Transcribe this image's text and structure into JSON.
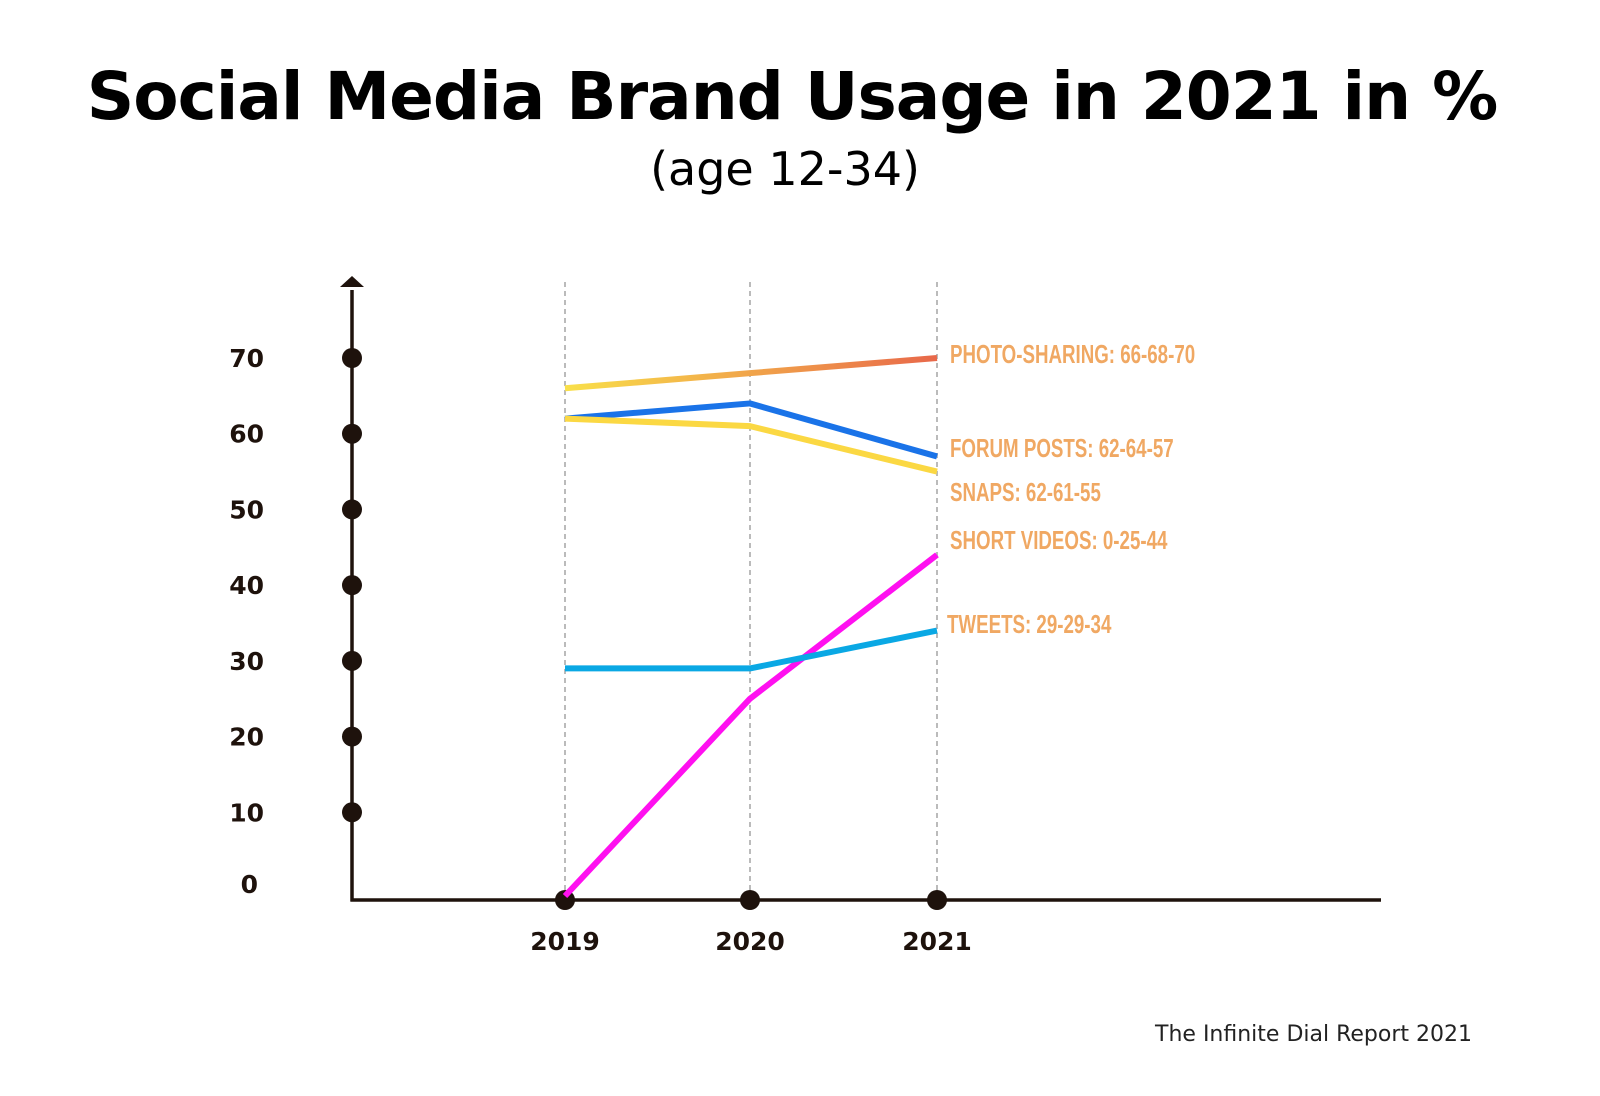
{
  "chart_data": {
    "type": "line",
    "title": "Social Media Brand Usage in 2021 in %",
    "subtitle": "(age 12-34)",
    "source": "The Infinite Dial Report 2021",
    "x": [
      "2019",
      "2020",
      "2021"
    ],
    "y_ticks": [
      "0",
      "10",
      "20",
      "30",
      "40",
      "50",
      "60",
      "70"
    ],
    "ylim": [
      0,
      70
    ],
    "grid": "vertical dashed at x categories",
    "legend": "inline labels at right of line ends",
    "series": [
      {
        "label": "PHOTO-SHARING: 66-68-70",
        "values": [
          66,
          68,
          70
        ],
        "color": "#f9e04a",
        "color_end": "#e8684a"
      },
      {
        "label": "FORUM POSTS: 62-64-57",
        "values": [
          62,
          64,
          57
        ],
        "color": "#1a73e8"
      },
      {
        "label": "SNAPS: 62-61-55",
        "values": [
          62,
          61,
          55
        ],
        "color": "#fbd843"
      },
      {
        "label": "SHORT VIDEOS: 0-25-44",
        "values": [
          0,
          25,
          44
        ],
        "color": "#ff10f0"
      },
      {
        "label": "TWEETS: 29-29-34",
        "values": [
          29,
          29,
          34
        ],
        "color": "#0aa8e4"
      }
    ],
    "label_color": "#f0a863",
    "axis_color": "#1e120c"
  }
}
